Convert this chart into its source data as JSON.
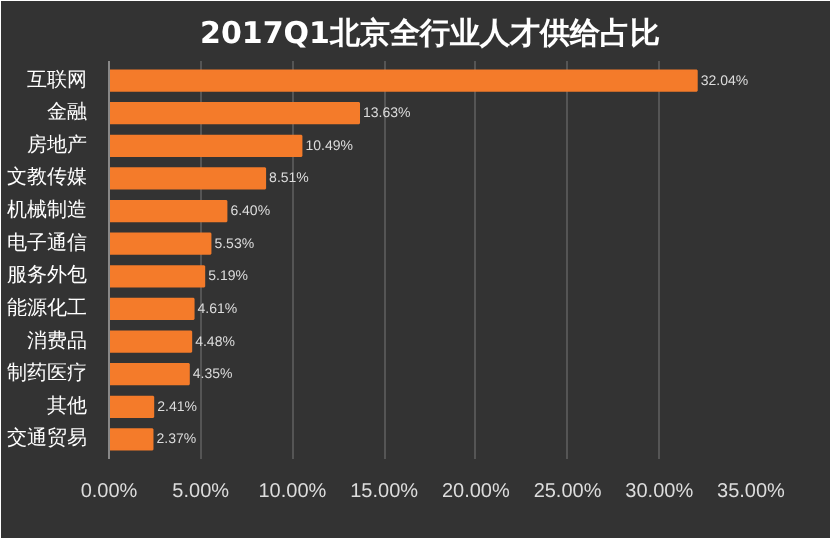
{
  "chart_data": {
    "type": "bar",
    "orientation": "horizontal",
    "title": "2017Q1北京全行业人才供给占比",
    "categories": [
      "互联网",
      "金融",
      "房地产",
      "文教传媒",
      "机械制造",
      "电子通信",
      "服务外包",
      "能源化工",
      "消费品",
      "制药医疗",
      "其他",
      "交通贸易"
    ],
    "values": [
      32.04,
      13.63,
      10.49,
      8.51,
      6.4,
      5.53,
      5.19,
      4.61,
      4.48,
      4.35,
      2.41,
      2.37
    ],
    "value_labels": [
      "32.04%",
      "13.63%",
      "10.49%",
      "8.51%",
      "6.40%",
      "5.53%",
      "5.19%",
      "4.61%",
      "4.48%",
      "4.35%",
      "2.41%",
      "2.37%"
    ],
    "color": "#f47b2a",
    "xlim": [
      0,
      35
    ],
    "xticks": [
      {
        "value": 0,
        "label": "0.00%"
      },
      {
        "value": 5,
        "label": "5.00%"
      },
      {
        "value": 10,
        "label": "10.00%"
      },
      {
        "value": 15,
        "label": "15.00%"
      },
      {
        "value": 20,
        "label": "20.00%"
      },
      {
        "value": 25,
        "label": "25.00%"
      },
      {
        "value": 30,
        "label": "30.00%"
      },
      {
        "value": 35,
        "label": "35.00%"
      }
    ],
    "grid": "x"
  }
}
